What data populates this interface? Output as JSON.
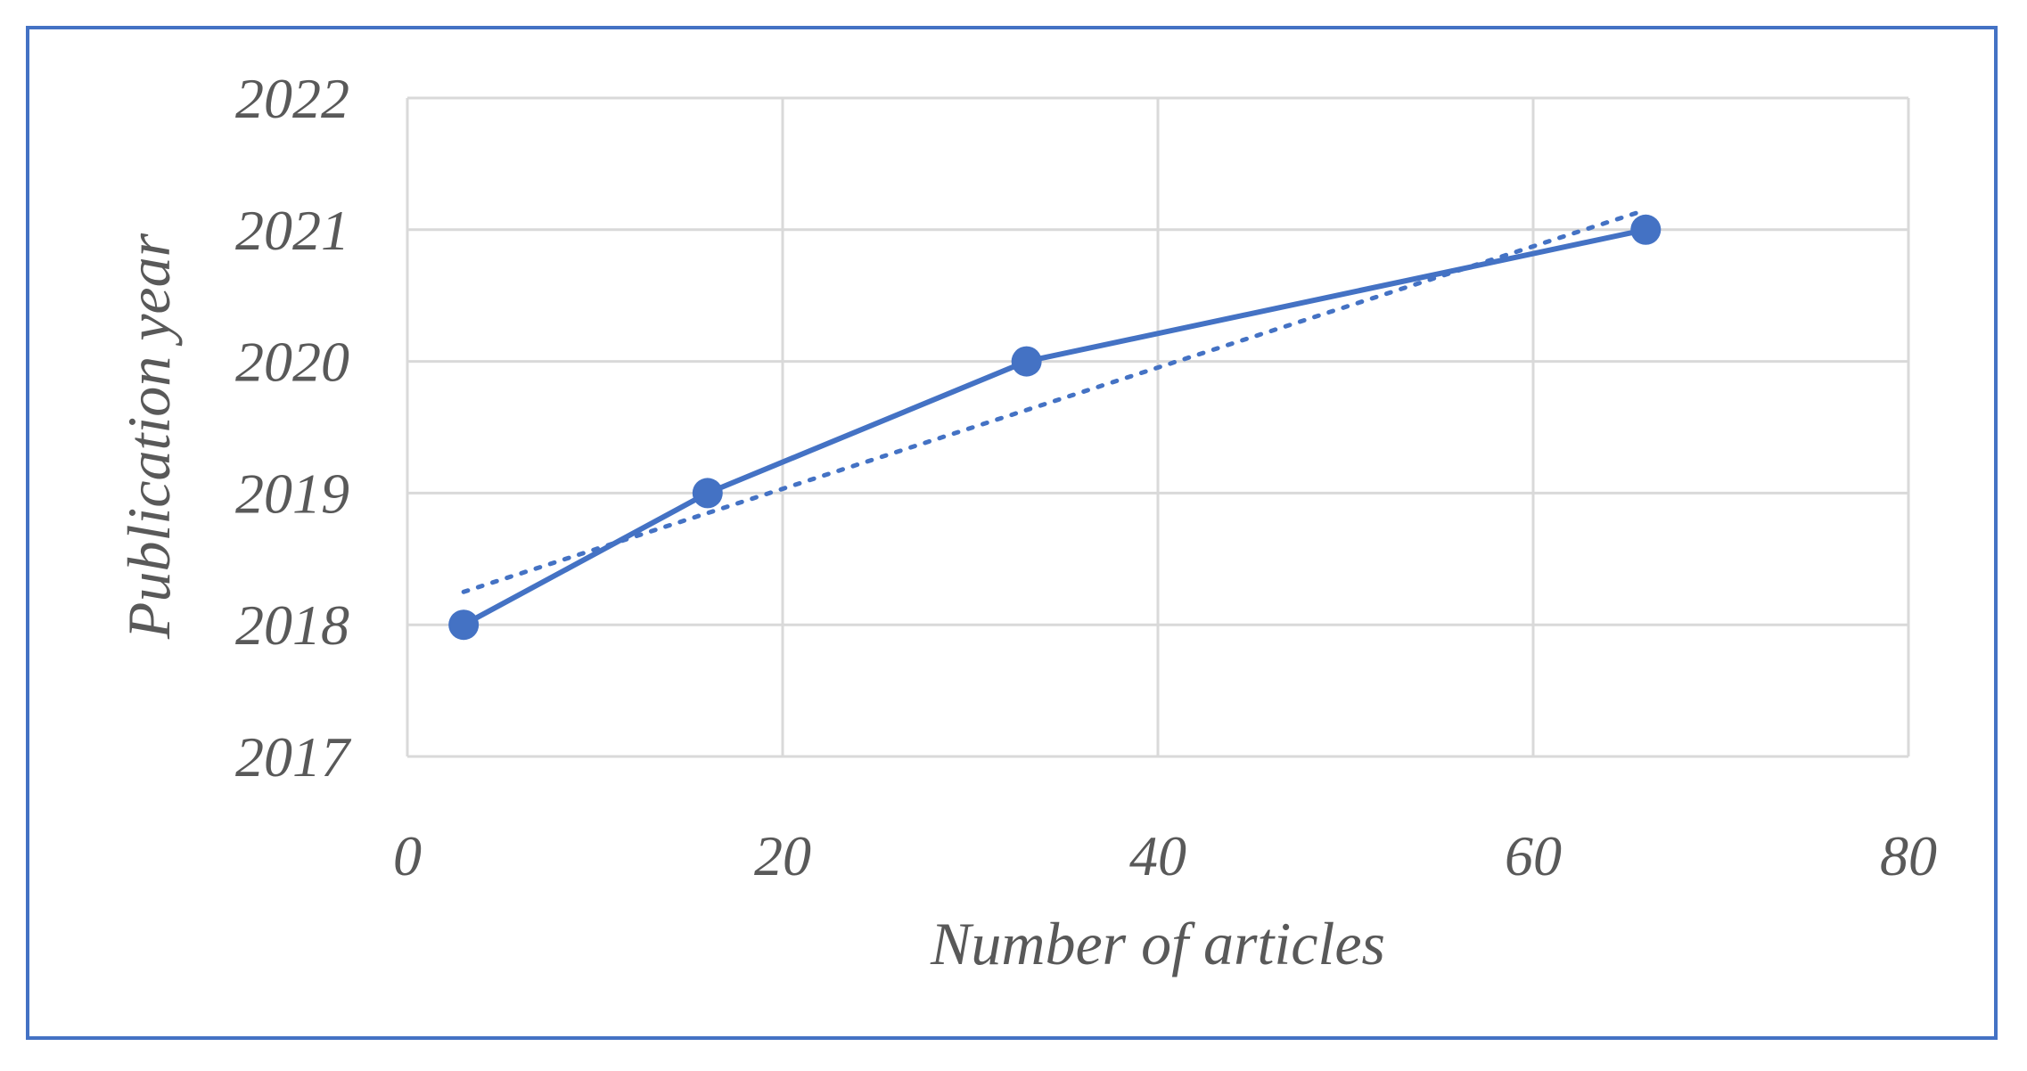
{
  "chart_data": {
    "type": "line",
    "xlabel": "Number of articles",
    "ylabel": "Publication year",
    "xlim": [
      0,
      80
    ],
    "ylim": [
      2017,
      2022
    ],
    "xticks": [
      0,
      20,
      40,
      60,
      80
    ],
    "yticks": [
      2017,
      2018,
      2019,
      2020,
      2021,
      2022
    ],
    "grid": true,
    "legend": "none",
    "series": [
      {
        "x": [
          3,
          16,
          33,
          66
        ],
        "y": [
          2018,
          2019,
          2020,
          2021
        ],
        "color": "#4472c4",
        "marker": "circle",
        "line_style": "solid"
      }
    ],
    "trendline": {
      "type": "linear",
      "style": "dotted",
      "color": "#4472c4",
      "x": [
        3,
        66
      ],
      "y": [
        2018.25,
        2021.15
      ]
    }
  },
  "colors": {
    "frame": "#4472c4",
    "series": "#4472c4",
    "grid": "#d9d9d9",
    "text": "#595959"
  }
}
